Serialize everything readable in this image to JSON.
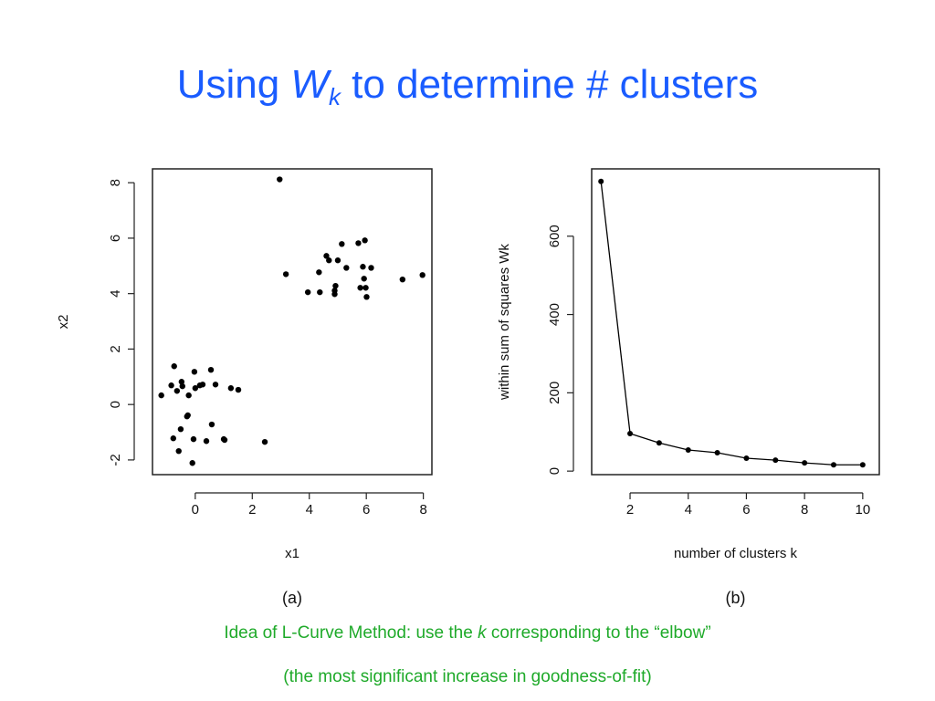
{
  "slide": {
    "title": [
      "Using ",
      "W",
      "k",
      " to determine # clusters"
    ],
    "caption": [
      "Idea of L-Curve Method: use the ",
      "k",
      " corresponding to the “elbow”"
    ],
    "caption2": "(the most significant increase in goodness-of-fit)"
  },
  "chart_data": [
    {
      "type": "scatter",
      "xlabel": "x1",
      "ylabel": "x2",
      "caption": "(a)",
      "color": "#000000",
      "xlim": [
        -1.5,
        8.3
      ],
      "ylim": [
        -2.53,
        8.5
      ],
      "xticks": [
        0,
        2,
        4,
        6,
        8
      ],
      "yticks": [
        -2,
        0,
        2,
        4,
        6,
        8
      ],
      "x": [
        2.96,
        3.18,
        3.95,
        4.34,
        4.37,
        4.6,
        4.69,
        4.89,
        4.92,
        4.89,
        5.0,
        5.14,
        5.3,
        5.72,
        5.79,
        5.95,
        5.88,
        5.92,
        5.98,
        6.01,
        6.17,
        7.27,
        7.97,
        -1.19,
        -0.74,
        -0.84,
        -0.64,
        -0.48,
        -0.45,
        -0.26,
        -0.23,
        -0.03,
        0,
        0.16,
        0.26,
        0.55,
        0.71,
        1.25,
        1.51,
        -0.77,
        -0.58,
        -0.51,
        -0.29,
        -0.1,
        -0.06,
        0.39,
        0.58,
        1.0,
        2.44,
        1.03
      ],
      "values": [
        8.12,
        4.7,
        4.05,
        4.77,
        4.05,
        5.36,
        5.2,
        4.11,
        4.28,
        3.98,
        5.2,
        5.79,
        4.93,
        5.82,
        4.21,
        5.92,
        4.97,
        4.54,
        4.21,
        3.88,
        4.93,
        4.51,
        4.67,
        0.33,
        1.38,
        0.69,
        0.49,
        0.82,
        0.66,
        -0.39,
        0.33,
        1.18,
        0.59,
        0.69,
        0.72,
        1.25,
        0.72,
        0.59,
        0.53,
        -1.22,
        -1.68,
        -0.89,
        -0.43,
        -2.11,
        -1.25,
        -1.32,
        -0.72,
        -1.25,
        -1.35,
        -1.28
      ]
    },
    {
      "type": "line",
      "xlabel": "number of clusters k",
      "ylabel": "within sum of squares Wk",
      "caption": "(b)",
      "color": "#000000",
      "xlim": [
        0.68,
        10.57
      ],
      "ylim": [
        -9,
        772
      ],
      "xticks": [
        2,
        4,
        6,
        8,
        10
      ],
      "yticks": [
        0,
        200,
        400,
        600
      ],
      "x": [
        1,
        2,
        3,
        4,
        5,
        6,
        7,
        8,
        9,
        10
      ],
      "values": [
        740,
        96,
        72,
        54,
        47,
        33,
        28,
        21,
        16,
        16
      ]
    }
  ]
}
